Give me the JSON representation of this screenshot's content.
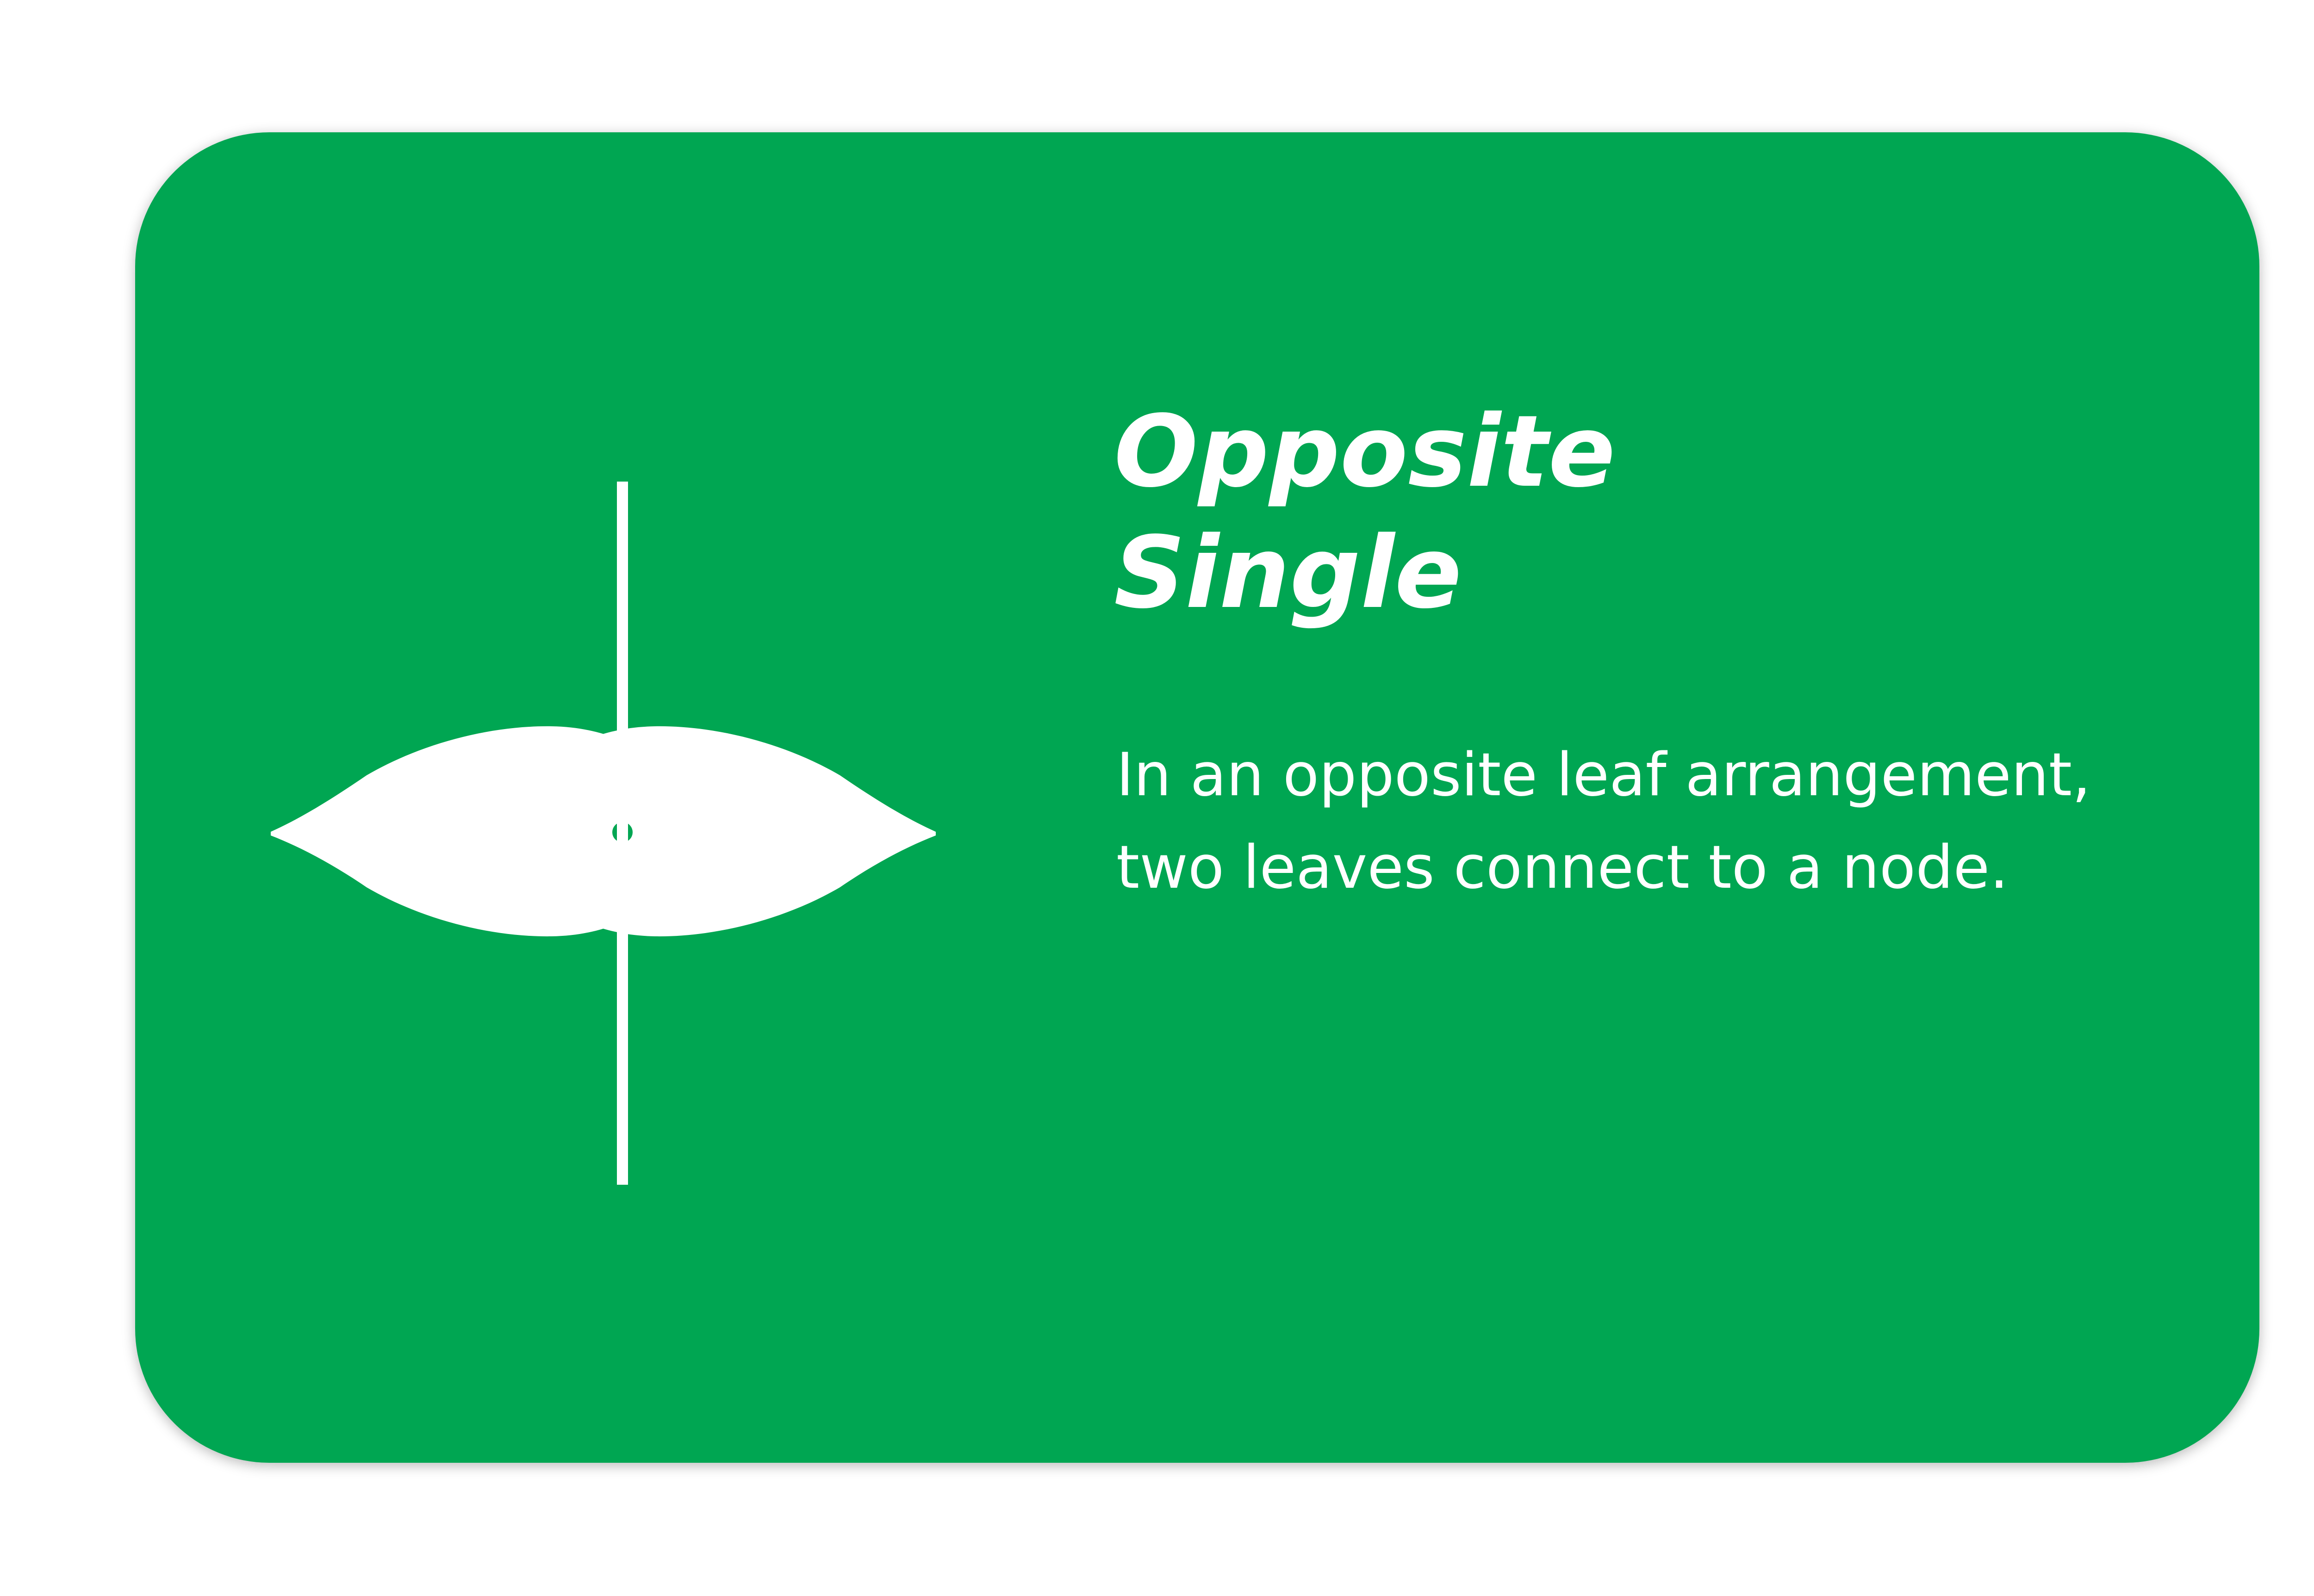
{
  "card": {
    "title_lines": [
      "Opposite",
      "Single"
    ],
    "description_lines": [
      "In an opposite leaf arrangement,",
      "two leaves connect to a node."
    ],
    "illustration_icon": "opposite-leaf-arrangement-icon"
  },
  "colors": {
    "card_background": "#00a652",
    "foreground": "#ffffff",
    "page_background": "#ffffff"
  }
}
